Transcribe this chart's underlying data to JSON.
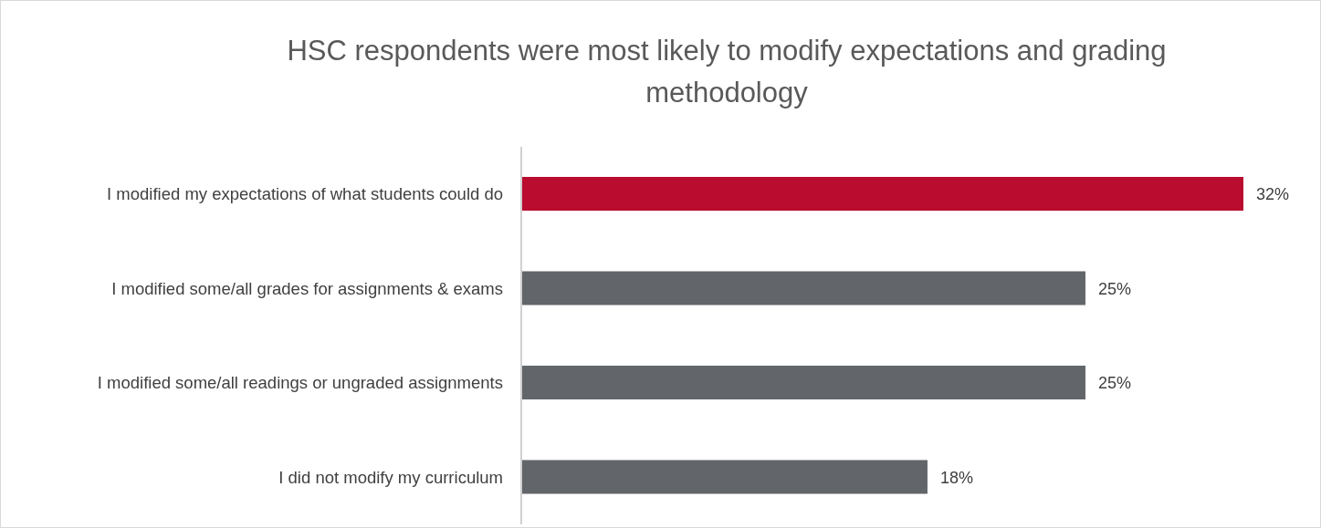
{
  "chart_data": {
    "type": "bar",
    "orientation": "horizontal",
    "title": "HSC respondents were most likely to modify expectations and grading methodology",
    "categories": [
      "I modified my expectations of what students could do",
      "I modified some/all grades for assignments & exams",
      "I modified some/all readings or ungraded assignments",
      "I did not modify my curriculum"
    ],
    "values": [
      32,
      25,
      25,
      18
    ],
    "colors": [
      "#b90c2f",
      "#626569",
      "#626569",
      "#626569"
    ],
    "value_labels": [
      "32%",
      "25%",
      "25%",
      "18%"
    ],
    "legend": false,
    "grid": false
  }
}
